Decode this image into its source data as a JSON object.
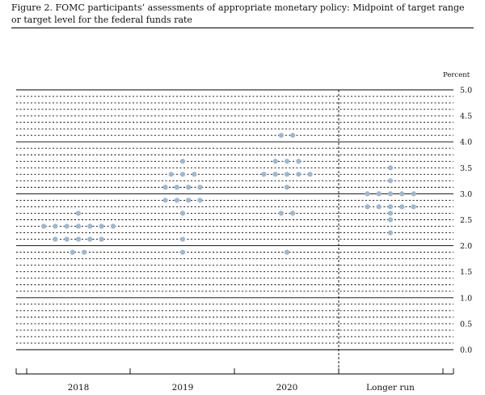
{
  "figure": {
    "title": "Figure 2. FOMC participants’ assessments of appropriate monetary policy: Midpoint of target range or target level for the federal funds rate"
  },
  "chart_data": {
    "type": "scatter",
    "unit_label": "Percent",
    "ylim": [
      0,
      5.0
    ],
    "y_ticks": [
      "5.0",
      "4.5",
      "4.0",
      "3.5",
      "3.0",
      "2.5",
      "2.0",
      "1.5",
      "1.0",
      "0.5",
      "0.0"
    ],
    "gridline_step": 0.125,
    "solid_gridlines_at": [
      0,
      1,
      2,
      3,
      4,
      5
    ],
    "categories": [
      "2018",
      "2019",
      "2020",
      "Longer run"
    ],
    "dot_color": "#9db8d2",
    "series": [
      {
        "category": "2018",
        "dots": [
          {
            "y": 1.875,
            "n": 2
          },
          {
            "y": 2.125,
            "n": 5
          },
          {
            "y": 2.375,
            "n": 7
          },
          {
            "y": 2.625,
            "n": 1
          }
        ]
      },
      {
        "category": "2019",
        "dots": [
          {
            "y": 1.875,
            "n": 1
          },
          {
            "y": 2.125,
            "n": 1
          },
          {
            "y": 2.625,
            "n": 1
          },
          {
            "y": 2.875,
            "n": 4
          },
          {
            "y": 3.125,
            "n": 4
          },
          {
            "y": 3.375,
            "n": 3
          },
          {
            "y": 3.625,
            "n": 1
          }
        ]
      },
      {
        "category": "2020",
        "dots": [
          {
            "y": 1.875,
            "n": 1
          },
          {
            "y": 2.625,
            "n": 2
          },
          {
            "y": 3.125,
            "n": 1
          },
          {
            "y": 3.375,
            "n": 5
          },
          {
            "y": 3.625,
            "n": 3
          },
          {
            "y": 4.125,
            "n": 2
          }
        ]
      },
      {
        "category": "Longer run",
        "dots": [
          {
            "y": 2.25,
            "n": 1
          },
          {
            "y": 2.5,
            "n": 1
          },
          {
            "y": 2.625,
            "n": 1
          },
          {
            "y": 2.75,
            "n": 5
          },
          {
            "y": 3.0,
            "n": 5
          },
          {
            "y": 3.25,
            "n": 1
          },
          {
            "y": 3.5,
            "n": 1
          }
        ]
      }
    ]
  }
}
